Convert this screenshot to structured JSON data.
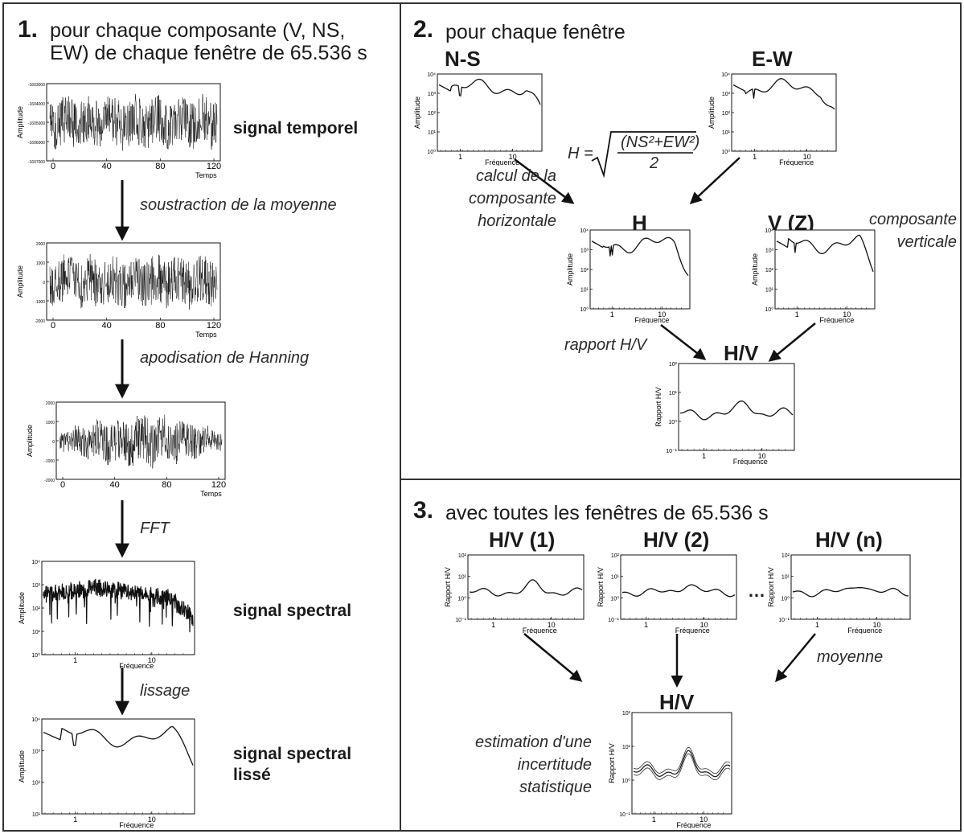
{
  "panel1": {
    "number": "1.",
    "heading_line1": "pour chaque composante (V, NS,",
    "heading_line2": "EW) de chaque fenêtre de 65.536 s",
    "steps": [
      "soustraction de la moyenne",
      "apodisation de Hanning",
      "FFT",
      "lissage"
    ],
    "labels": {
      "signal_temporel": "signal temporel",
      "signal_spectral": "signal spectral",
      "signal_spectral_lisse_line1": "signal spectral",
      "signal_spectral_lisse_line2": "lissé"
    },
    "time_plots": [
      {
        "ylabel": "Amplitude",
        "xlabel": "Temps",
        "xticks": [
          "0",
          "40",
          "80",
          "120"
        ],
        "yticks": [
          "-1603000",
          "-1604000",
          "-1605000",
          "-1606000",
          "-1607000"
        ]
      },
      {
        "ylabel": "Amplitude",
        "xlabel": "Temps",
        "xticks": [
          "0",
          "40",
          "80",
          "120"
        ],
        "yticks": [
          "2000",
          "1000",
          "0",
          "-1000",
          "-2000"
        ]
      },
      {
        "ylabel": "Amplitude",
        "xlabel": "Temps",
        "xticks": [
          "0",
          "40",
          "80",
          "120"
        ],
        "yticks": [
          "2000",
          "1000",
          "0",
          "-1000",
          "-2000"
        ]
      }
    ],
    "spectral_plots": [
      {
        "ylabel": "Amplitude",
        "xlabel": "Fréquence",
        "xticks": [
          "1",
          "10"
        ],
        "yticks": [
          "10⁴",
          "10³",
          "10²",
          "10¹",
          "10⁰"
        ]
      },
      {
        "ylabel": "Amplitude",
        "xlabel": "Fréquence",
        "xticks": [
          "1",
          "10"
        ],
        "yticks": [
          "10⁴",
          "10³",
          "10²",
          "10¹"
        ]
      }
    ]
  },
  "panel2": {
    "number": "2.",
    "heading": "pour chaque fenêtre",
    "titles": {
      "ns": "N-S",
      "ew": "E-W",
      "h": "H",
      "v": "V (Z)",
      "hv": "H/V"
    },
    "formula": {
      "lhs": "H =",
      "numerator": "(NS²+EW²)",
      "denominator": "2"
    },
    "steps": {
      "calcul_line1": "calcul de la",
      "calcul_line2": "composante",
      "calcul_line3": "horizontale",
      "composante_line1": "composante",
      "composante_line2": "verticale",
      "rapport": "rapport H/V"
    },
    "amp_plot": {
      "ylabel": "Amplitude",
      "xlabel": "Fréquence",
      "xticks": [
        "1",
        "10"
      ],
      "yticks": [
        "10⁴",
        "10³",
        "10²",
        "10¹",
        "10⁰"
      ]
    },
    "hv_plot": {
      "ylabel": "Rapport H/V",
      "xlabel": "Fréquence",
      "xticks": [
        "1",
        "10"
      ],
      "yticks": [
        "10²",
        "10¹",
        "10⁰",
        "10⁻¹"
      ]
    }
  },
  "panel3": {
    "number": "3.",
    "heading": "avec toutes les fenêtres de 65.536 s",
    "titles": [
      "H/V (1)",
      "H/V (2)",
      "H/V (n)"
    ],
    "ellipsis": "…",
    "mean_title": "H/V",
    "steps": {
      "moyenne": "moyenne",
      "estimation_line1": "estimation d'une",
      "estimation_line2": "incertitude",
      "estimation_line3": "statistique"
    },
    "hv_plot": {
      "ylabel": "Rapport H/V",
      "xlabel": "Fréquence",
      "xticks": [
        "1",
        "10"
      ],
      "yticks": [
        "10²",
        "10¹",
        "10⁰",
        "10⁻¹"
      ]
    }
  },
  "colors": {
    "ink": "#111111",
    "frame": "#333333",
    "text": "#1a1a1a"
  }
}
